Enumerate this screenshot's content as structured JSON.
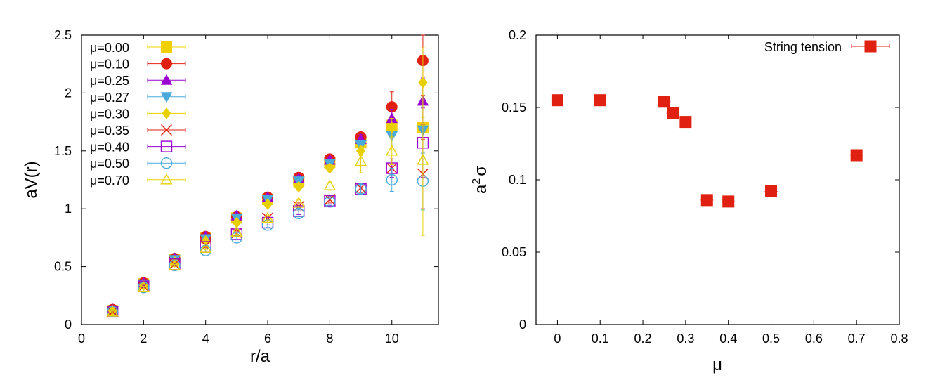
{
  "chart_data": [
    {
      "type": "scatter",
      "xlabel": "r/a",
      "ylabel": "aV(r)",
      "xlim": [
        0,
        11.5
      ],
      "ylim": [
        0,
        2.5
      ],
      "xticks": [
        0,
        2,
        4,
        6,
        8,
        10
      ],
      "yticks": [
        0,
        0.5,
        1,
        1.5,
        2,
        2.5
      ],
      "grid": false,
      "legend_position": "top-left",
      "series": [
        {
          "name": "μ=0.00",
          "marker": "square-filled",
          "color": "#f0d000",
          "points": [
            [
              1,
              0.12
            ],
            [
              2,
              0.35
            ],
            [
              3,
              0.56
            ],
            [
              4,
              0.75
            ],
            [
              5,
              0.92
            ],
            [
              6,
              1.08
            ],
            [
              7,
              1.24
            ],
            [
              8,
              1.4
            ],
            [
              9,
              1.57
            ],
            [
              10,
              1.72
            ],
            [
              11,
              1.7
            ]
          ],
          "errors": [
            0.01,
            0.01,
            0.01,
            0.015,
            0.02,
            0.02,
            0.03,
            0.03,
            0.04,
            0.08,
            0.25
          ]
        },
        {
          "name": "μ=0.10",
          "marker": "circle-filled",
          "color": "#e02010",
          "points": [
            [
              1,
              0.13
            ],
            [
              2,
              0.36
            ],
            [
              3,
              0.57
            ],
            [
              4,
              0.76
            ],
            [
              5,
              0.93
            ],
            [
              6,
              1.1
            ],
            [
              7,
              1.27
            ],
            [
              8,
              1.43
            ],
            [
              9,
              1.62
            ],
            [
              10,
              1.88
            ],
            [
              11,
              2.28
            ]
          ],
          "errors": [
            0.01,
            0.01,
            0.01,
            0.015,
            0.02,
            0.02,
            0.03,
            0.03,
            0.04,
            0.13,
            0.3
          ]
        },
        {
          "name": "μ=0.25",
          "marker": "triangle-up-filled",
          "color": "#9a00d0",
          "points": [
            [
              1,
              0.13
            ],
            [
              2,
              0.36
            ],
            [
              3,
              0.57
            ],
            [
              4,
              0.76
            ],
            [
              5,
              0.94
            ],
            [
              6,
              1.1
            ],
            [
              7,
              1.26
            ],
            [
              8,
              1.42
            ],
            [
              9,
              1.6
            ],
            [
              10,
              1.78
            ],
            [
              11,
              1.93
            ]
          ],
          "errors": [
            0.01,
            0.01,
            0.01,
            0.015,
            0.02,
            0.02,
            0.03,
            0.03,
            0.04,
            0.08,
            0.2
          ]
        },
        {
          "name": "μ=0.27",
          "marker": "triangle-down-filled",
          "color": "#4aaadc",
          "points": [
            [
              1,
              0.12
            ],
            [
              2,
              0.35
            ],
            [
              3,
              0.56
            ],
            [
              4,
              0.74
            ],
            [
              5,
              0.92
            ],
            [
              6,
              1.08
            ],
            [
              7,
              1.24
            ],
            [
              8,
              1.39
            ],
            [
              9,
              1.55
            ],
            [
              10,
              1.63
            ],
            [
              11,
              1.68
            ]
          ],
          "errors": [
            0.01,
            0.01,
            0.01,
            0.015,
            0.02,
            0.02,
            0.03,
            0.03,
            0.04,
            0.08,
            0.2
          ]
        },
        {
          "name": "μ=0.30",
          "marker": "diamond-filled",
          "color": "#e8d000",
          "points": [
            [
              1,
              0.12
            ],
            [
              2,
              0.34
            ],
            [
              3,
              0.54
            ],
            [
              4,
              0.72
            ],
            [
              5,
              0.88
            ],
            [
              6,
              1.04
            ],
            [
              7,
              1.19
            ],
            [
              8,
              1.35
            ],
            [
              9,
              1.5
            ],
            [
              10,
              1.7
            ],
            [
              11,
              2.09
            ]
          ],
          "errors": [
            0.01,
            0.01,
            0.01,
            0.015,
            0.02,
            0.02,
            0.03,
            0.03,
            0.04,
            0.08,
            0.3
          ]
        },
        {
          "name": "μ=0.35",
          "marker": "cross",
          "color": "#e02010",
          "points": [
            [
              1,
              0.11
            ],
            [
              2,
              0.33
            ],
            [
              3,
              0.52
            ],
            [
              4,
              0.68
            ],
            [
              5,
              0.79
            ],
            [
              6,
              0.92
            ],
            [
              7,
              1.02
            ],
            [
              8,
              1.08
            ],
            [
              9,
              1.18
            ],
            [
              10,
              1.35
            ],
            [
              11,
              1.3
            ]
          ],
          "errors": [
            0.01,
            0.01,
            0.01,
            0.015,
            0.02,
            0.02,
            0.03,
            0.03,
            0.04,
            0.08,
            0.3
          ]
        },
        {
          "name": "μ=0.40",
          "marker": "square-open",
          "color": "#9a00d0",
          "points": [
            [
              1,
              0.11
            ],
            [
              2,
              0.33
            ],
            [
              3,
              0.52
            ],
            [
              4,
              0.67
            ],
            [
              5,
              0.78
            ],
            [
              6,
              0.88
            ],
            [
              7,
              0.98
            ],
            [
              8,
              1.07
            ],
            [
              9,
              1.17
            ],
            [
              10,
              1.35
            ],
            [
              11,
              1.57
            ]
          ],
          "errors": [
            0.01,
            0.01,
            0.01,
            0.015,
            0.02,
            0.02,
            0.03,
            0.03,
            0.04,
            0.08,
            0.3
          ]
        },
        {
          "name": "μ=0.50",
          "marker": "circle-open",
          "color": "#4aaadc",
          "points": [
            [
              1,
              0.11
            ],
            [
              2,
              0.32
            ],
            [
              3,
              0.51
            ],
            [
              4,
              0.64
            ],
            [
              5,
              0.75
            ],
            [
              6,
              0.86
            ],
            [
              7,
              0.96
            ],
            [
              8,
              1.06
            ],
            [
              9,
              1.17
            ],
            [
              10,
              1.25
            ],
            [
              11,
              1.24
            ]
          ],
          "errors": [
            0.01,
            0.01,
            0.01,
            0.015,
            0.02,
            0.02,
            0.03,
            0.03,
            0.04,
            0.1,
            0.25
          ]
        },
        {
          "name": "μ=0.70",
          "marker": "triangle-up-open",
          "color": "#e8d000",
          "points": [
            [
              1,
              0.11
            ],
            [
              2,
              0.32
            ],
            [
              3,
              0.51
            ],
            [
              4,
              0.66
            ],
            [
              5,
              0.8
            ],
            [
              6,
              0.92
            ],
            [
              7,
              1.05
            ],
            [
              8,
              1.2
            ],
            [
              9,
              1.41
            ],
            [
              10,
              1.5
            ],
            [
              11,
              1.42
            ]
          ],
          "errors": [
            0.01,
            0.01,
            0.01,
            0.015,
            0.02,
            0.02,
            0.03,
            0.04,
            0.1,
            0.12,
            0.65
          ]
        }
      ]
    },
    {
      "type": "scatter",
      "xlabel": "μ",
      "ylabel_base": "a",
      "ylabel_sup": "2",
      "ylabel_sym": "σ",
      "xlim": [
        -0.05,
        0.8
      ],
      "ylim": [
        0,
        0.2
      ],
      "xticks": [
        0,
        0.1,
        0.2,
        0.3,
        0.4,
        0.5,
        0.6,
        0.7,
        0.8
      ],
      "yticks": [
        0,
        0.05,
        0.1,
        0.15,
        0.2
      ],
      "grid": false,
      "legend_position": "top-right",
      "series": [
        {
          "name": "String tension",
          "marker": "square-filled",
          "color": "#e02010",
          "points": [
            [
              0,
              0.155
            ],
            [
              0.1,
              0.155
            ],
            [
              0.25,
              0.154
            ],
            [
              0.27,
              0.146
            ],
            [
              0.3,
              0.14
            ],
            [
              0.35,
              0.086
            ],
            [
              0.4,
              0.085
            ],
            [
              0.5,
              0.092
            ],
            [
              0.7,
              0.117
            ]
          ],
          "errors": [
            0.002,
            0.002,
            0.002,
            0.002,
            0.002,
            0.002,
            0.002,
            0.002,
            0.002
          ]
        }
      ]
    }
  ]
}
